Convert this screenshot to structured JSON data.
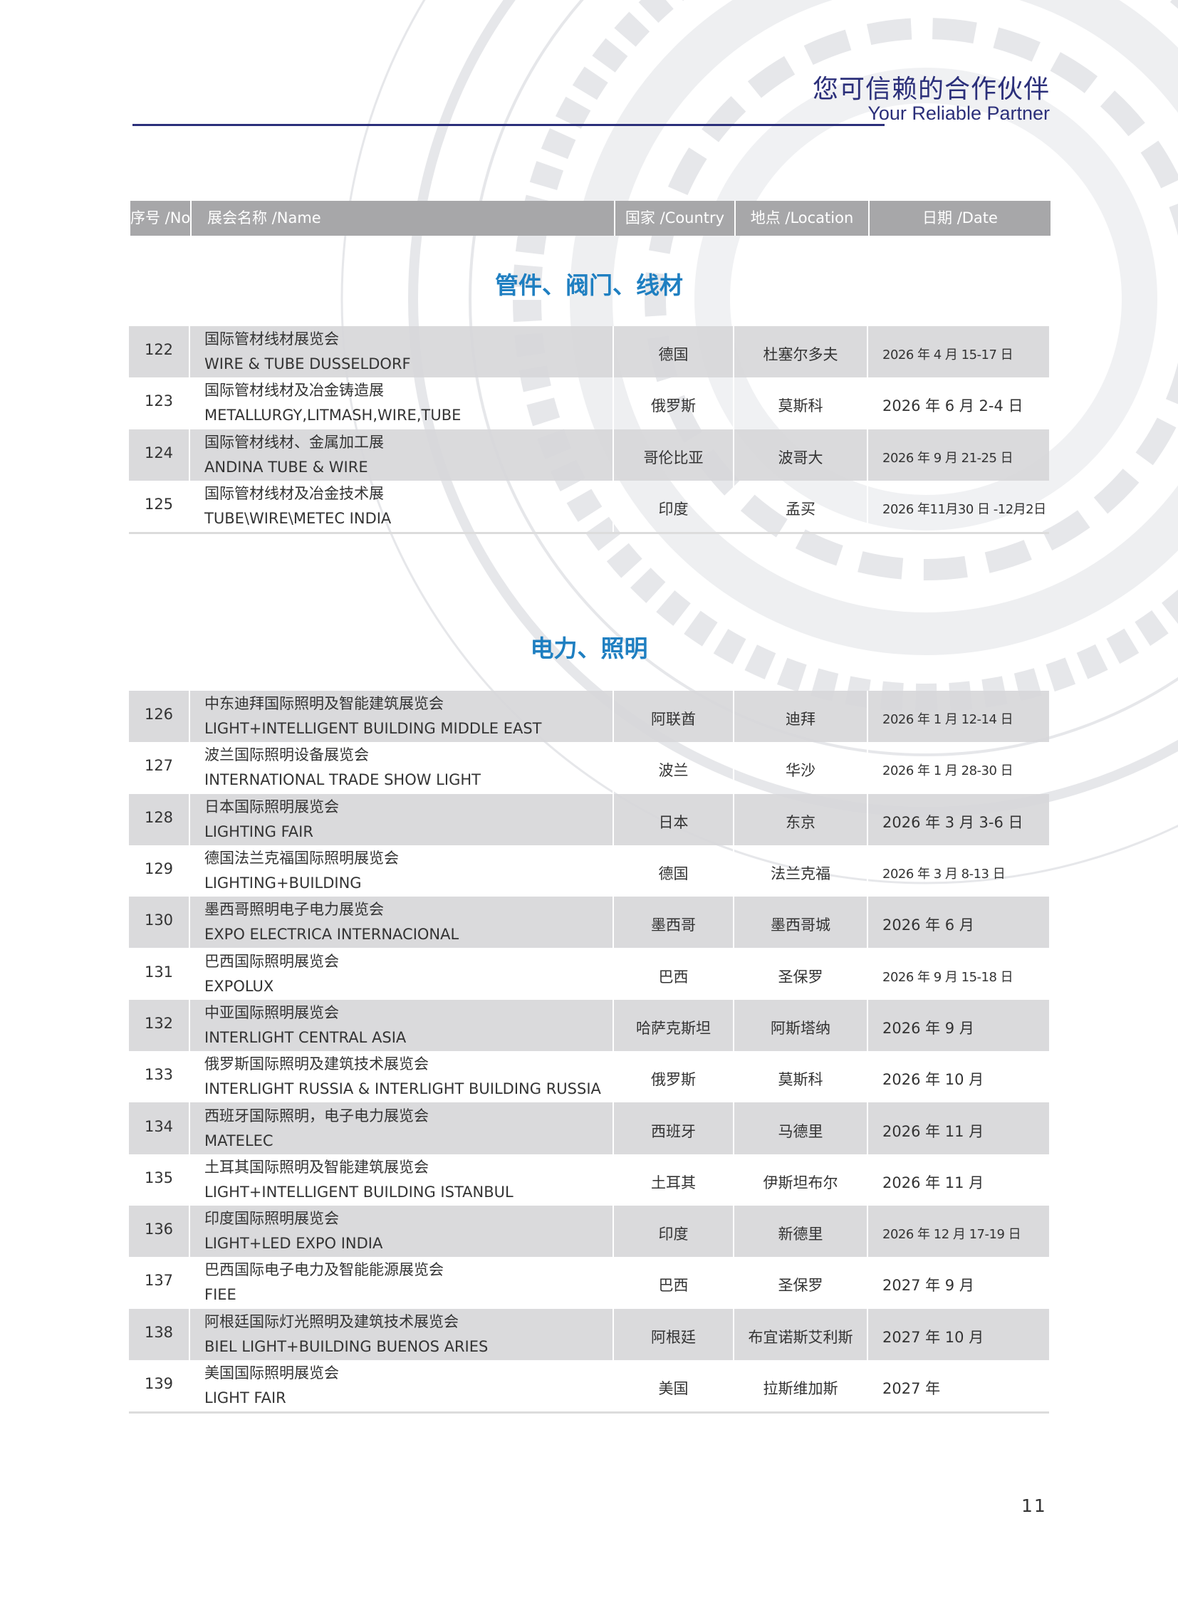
{
  "header": {
    "title_cn": "您可信赖的合作伙伴",
    "title_en": "Your Reliable Partner"
  },
  "columns": {
    "no": "序号 /No",
    "name": "展会名称 /Name",
    "country": "国家 /Country",
    "location": "地点 /Location",
    "date": "日期 /Date"
  },
  "sections": [
    {
      "title": "管件、阀门、线材",
      "rows": [
        {
          "no": "122",
          "name_cn": "国际管材线材展览会",
          "name_en": "WIRE & TUBE DUSSELDORF",
          "country": "德国",
          "location": "杜塞尔多夫",
          "date": "2026 年 4 月 15-17 日"
        },
        {
          "no": "123",
          "name_cn": "国际管材线材及冶金铸造展",
          "name_en": "METALLURGY,LITMASH,WIRE,TUBE",
          "country": "俄罗斯",
          "location": "莫斯科",
          "date": "2026 年 6 月 2-4 日"
        },
        {
          "no": "124",
          "name_cn": "国际管材线材、金属加工展",
          "name_en": "ANDINA TUBE & WIRE",
          "country": "哥伦比亚",
          "location": "波哥大",
          "date": "2026 年 9 月 21-25 日"
        },
        {
          "no": "125",
          "name_cn": "国际管材线材及冶金技术展",
          "name_en": "TUBE\\WIRE\\METEC INDIA",
          "country": "印度",
          "location": "孟买",
          "date": "2026 年11月30 日 -12月2日"
        }
      ]
    },
    {
      "title": "电力、照明",
      "rows": [
        {
          "no": "126",
          "name_cn": "中东迪拜国际照明及智能建筑展览会",
          "name_en": "LIGHT+INTELLIGENT BUILDING MIDDLE EAST",
          "country": "阿联酋",
          "location": "迪拜",
          "date": "2026 年 1 月 12-14 日"
        },
        {
          "no": "127",
          "name_cn": "波兰国际照明设备展览会",
          "name_en": "INTERNATIONAL TRADE SHOW LIGHT",
          "country": "波兰",
          "location": "华沙",
          "date": "2026 年 1 月 28-30 日"
        },
        {
          "no": "128",
          "name_cn": "日本国际照明展览会",
          "name_en": "LIGHTING FAIR",
          "country": "日本",
          "location": "东京",
          "date": "2026 年 3 月 3-6 日"
        },
        {
          "no": "129",
          "name_cn": "德国法兰克福国际照明展览会",
          "name_en": "LIGHTING+BUILDING",
          "country": "德国",
          "location": "法兰克福",
          "date": "2026 年 3 月 8-13 日"
        },
        {
          "no": "130",
          "name_cn": "墨西哥照明电子电力展览会",
          "name_en": "EXPO ELECTRICA INTERNACIONAL",
          "country": "墨西哥",
          "location": "墨西哥城",
          "date": "2026 年 6 月"
        },
        {
          "no": "131",
          "name_cn": "巴西国际照明展览会",
          "name_en": "EXPOLUX",
          "country": "巴西",
          "location": "圣保罗",
          "date": "2026 年 9 月 15-18 日"
        },
        {
          "no": "132",
          "name_cn": "中亚国际照明展览会",
          "name_en": "INTERLIGHT CENTRAL ASIA",
          "country": "哈萨克斯坦",
          "location": "阿斯塔纳",
          "date": "2026 年 9 月"
        },
        {
          "no": "133",
          "name_cn": "俄罗斯国际照明及建筑技术展览会",
          "name_en": "INTERLIGHT RUSSIA & INTERLIGHT BUILDING RUSSIA",
          "country": "俄罗斯",
          "location": "莫斯科",
          "date": "2026 年 10 月"
        },
        {
          "no": "134",
          "name_cn": "西班牙国际照明，电子电力展览会",
          "name_en": "MATELEC",
          "country": "西班牙",
          "location": "马德里",
          "date": "2026 年 11 月"
        },
        {
          "no": "135",
          "name_cn": "土耳其国际照明及智能建筑展览会",
          "name_en": "LIGHT+INTELLIGENT BUILDING ISTANBUL",
          "country": "土耳其",
          "location": "伊斯坦布尔",
          "date": "2026 年 11 月"
        },
        {
          "no": "136",
          "name_cn": "印度国际照明展览会",
          "name_en": "LIGHT+LED EXPO INDIA",
          "country": "印度",
          "location": "新德里",
          "date": "2026 年 12 月 17-19 日"
        },
        {
          "no": "137",
          "name_cn": "巴西国际电子电力及智能能源展览会",
          "name_en": "FIEE",
          "country": "巴西",
          "location": "圣保罗",
          "date": "2027 年 9 月"
        },
        {
          "no": "138",
          "name_cn": "阿根廷国际灯光照明及建筑技术展览会",
          "name_en": "BIEL LIGHT+BUILDING BUENOS ARIES",
          "country": "阿根廷",
          "location": "布宜诺斯艾利斯",
          "date": "2027 年 10 月"
        },
        {
          "no": "139",
          "name_cn": "美国国际照明展览会",
          "name_en": "LIGHT FAIR",
          "country": "美国",
          "location": "拉斯维加斯",
          "date": "2027 年"
        }
      ]
    }
  ],
  "page_number": "11",
  "colors": {
    "navy": "#2b2f7a",
    "section_blue": "#1f7fc1",
    "header_grey": "#a7a7a9",
    "row_shade": "#d7d7d9"
  }
}
